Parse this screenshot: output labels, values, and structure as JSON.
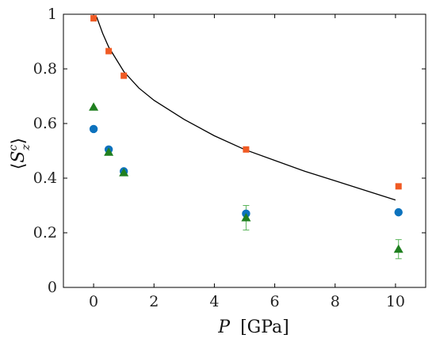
{
  "chart_data": {
    "type": "scatter",
    "xlabel": "P [GPa]",
    "xlabel_italic": "P",
    "xlabel_unit": "[GPa]",
    "ylabel": "⟨S_z^c⟩",
    "xlim": [
      -1,
      11
    ],
    "ylim": [
      0,
      1
    ],
    "x_ticks": [
      0,
      2,
      4,
      6,
      8,
      10
    ],
    "y_ticks": [
      0,
      0.2,
      0.4,
      0.6,
      0.8,
      1
    ],
    "x_tick_labels": [
      "0",
      "2",
      "4",
      "6",
      "8",
      "10"
    ],
    "y_tick_labels": [
      "0",
      "0.2",
      "0.4",
      "0.6",
      "0.8",
      "1"
    ],
    "grid": false,
    "series": [
      {
        "marker": "square",
        "color": "#f05a23",
        "points": [
          {
            "x": 0.0,
            "y": 0.985
          },
          {
            "x": 0.5,
            "y": 0.865
          },
          {
            "x": 1.0,
            "y": 0.775
          },
          {
            "x": 5.05,
            "y": 0.505
          },
          {
            "x": 10.1,
            "y": 0.37
          }
        ]
      },
      {
        "marker": "circle",
        "color": "#0c72bd",
        "points": [
          {
            "x": 0.0,
            "y": 0.58
          },
          {
            "x": 0.5,
            "y": 0.505
          },
          {
            "x": 1.0,
            "y": 0.425
          },
          {
            "x": 5.05,
            "y": 0.27
          },
          {
            "x": 10.1,
            "y": 0.275
          }
        ]
      },
      {
        "marker": "triangle",
        "color": "#1f7f1f",
        "points": [
          {
            "x": 0.0,
            "y": 0.66
          },
          {
            "x": 0.5,
            "y": 0.495
          },
          {
            "x": 1.0,
            "y": 0.42
          },
          {
            "x": 5.05,
            "y": 0.255,
            "err": 0.045
          },
          {
            "x": 10.1,
            "y": 0.14,
            "err": 0.035
          }
        ]
      }
    ],
    "curve": {
      "style": "solid",
      "color": "#000000",
      "points": [
        {
          "x": 0.1,
          "y": 0.99
        },
        {
          "x": 0.3,
          "y": 0.93
        },
        {
          "x": 0.5,
          "y": 0.88
        },
        {
          "x": 1.0,
          "y": 0.79
        },
        {
          "x": 1.5,
          "y": 0.73
        },
        {
          "x": 2.0,
          "y": 0.685
        },
        {
          "x": 3.0,
          "y": 0.615
        },
        {
          "x": 4.0,
          "y": 0.555
        },
        {
          "x": 5.0,
          "y": 0.505
        },
        {
          "x": 6.0,
          "y": 0.465
        },
        {
          "x": 7.0,
          "y": 0.425
        },
        {
          "x": 8.0,
          "y": 0.39
        },
        {
          "x": 9.0,
          "y": 0.355
        },
        {
          "x": 10.0,
          "y": 0.32
        }
      ]
    }
  }
}
